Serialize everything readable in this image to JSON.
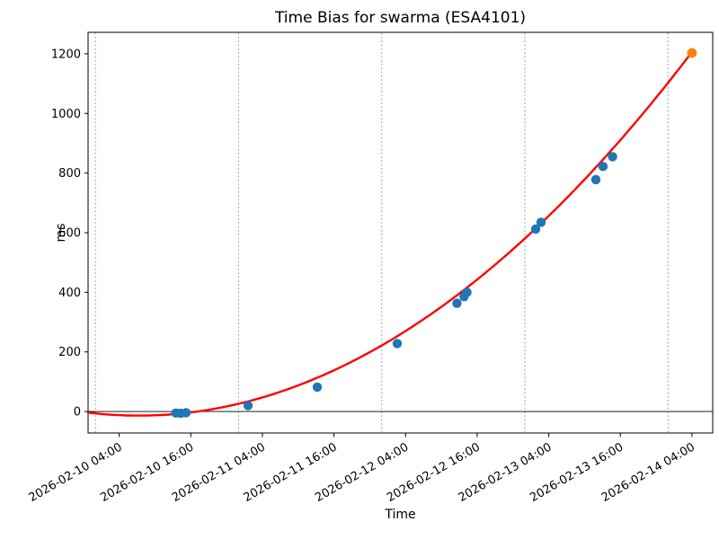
{
  "figure": {
    "title": "Time Bias for swarma (ESA4101)",
    "xlabel": "Time",
    "ylabel": "ms"
  },
  "chart_data": {
    "type": "scatter",
    "title": "Time Bias for swarma (ESA4101)",
    "xlabel": "Time",
    "ylabel": "ms",
    "x_unit": "hours since 2026-02-10 00:00",
    "xlim": [
      -1.22,
      103.48
    ],
    "ylim": [
      -72,
      1272
    ],
    "grid": "vertical dashed lines at each midnight only",
    "legend": null,
    "x_ticks": [
      {
        "t": 4,
        "label": "2026-02-10 04:00"
      },
      {
        "t": 16,
        "label": "2026-02-10 16:00"
      },
      {
        "t": 28,
        "label": "2026-02-11 04:00"
      },
      {
        "t": 40,
        "label": "2026-02-11 16:00"
      },
      {
        "t": 52,
        "label": "2026-02-12 04:00"
      },
      {
        "t": 64,
        "label": "2026-02-12 16:00"
      },
      {
        "t": 76,
        "label": "2026-02-13 04:00"
      },
      {
        "t": 88,
        "label": "2026-02-13 16:00"
      },
      {
        "t": 100,
        "label": "2026-02-14 04:00"
      }
    ],
    "y_ticks": [
      0,
      200,
      400,
      600,
      800,
      1000,
      1200
    ],
    "day_gridlines_t": [
      0,
      24,
      48,
      72,
      96
    ],
    "zero_line_at": 0,
    "series": [
      {
        "name": "measured-bias-points",
        "type": "scatter",
        "color": "#1f77b4",
        "points": [
          [
            13.5,
            -5
          ],
          [
            14.3,
            -6
          ],
          [
            15.2,
            -4
          ],
          [
            25.6,
            20
          ],
          [
            37.2,
            82
          ],
          [
            50.6,
            228
          ],
          [
            60.6,
            363
          ],
          [
            61.8,
            385
          ],
          [
            62.3,
            400
          ],
          [
            73.8,
            612
          ],
          [
            74.7,
            635
          ],
          [
            83.9,
            778
          ],
          [
            85.1,
            822
          ],
          [
            86.7,
            855
          ]
        ]
      },
      {
        "name": "projected-endpoint",
        "type": "scatter",
        "color": "#ff7f0e",
        "points": [
          [
            100,
            1203
          ]
        ]
      },
      {
        "name": "quadratic-fit-curve",
        "type": "line",
        "color": "#ff0000",
        "quad_coeffs": {
          "a": 0.1418,
          "b": -2.06,
          "c": -6.17
        },
        "t_range": [
          -1.22,
          100
        ]
      }
    ],
    "colors": {
      "scatter": "#1f77b4",
      "highlight": "#ff7f0e",
      "fit_line": "#ff0000",
      "day_gridline": "#79add2",
      "axes": "#000000"
    }
  }
}
